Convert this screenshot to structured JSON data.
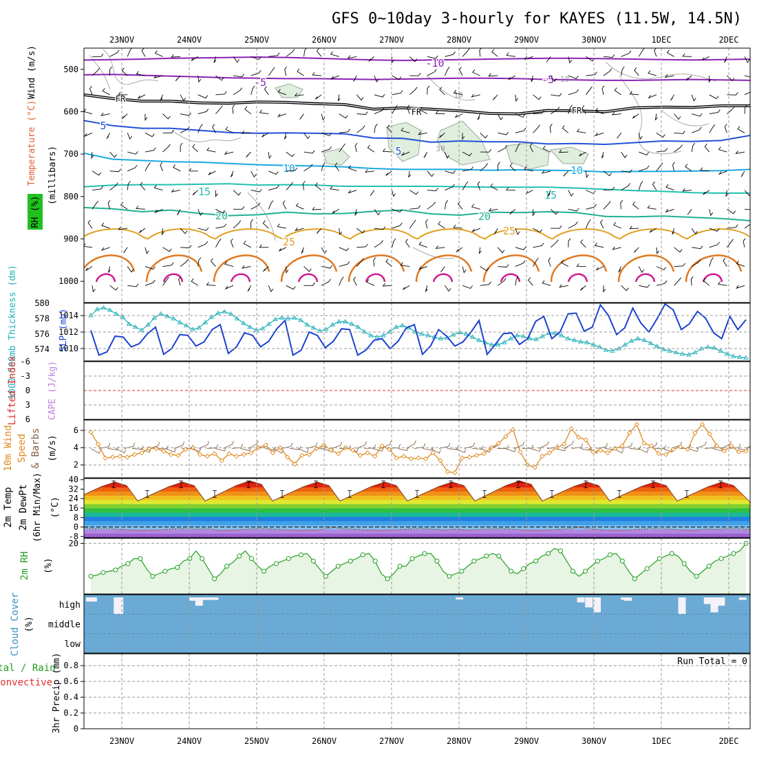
{
  "chart_data": [
    {
      "type": "heatmap",
      "title": "GFS 0~10day 3-hourly for KAYES (11.5W, 14.5N)",
      "x_tick_labels": [
        "23NOV",
        "24NOV",
        "25NOV",
        "26NOV",
        "27NOV",
        "28NOV",
        "29NOV",
        "30NOV",
        "1DEC",
        "2DEC"
      ],
      "panel": "upper-air",
      "ylabel_parts": [
        "Wind (m/s)",
        "Temperature (°C)",
        "RH (%)",
        "(millibars)"
      ],
      "yticks": [
        500,
        600,
        700,
        800,
        900,
        1000
      ],
      "ylim": [
        1050,
        450
      ],
      "temperature_contours": [
        {
          "label": "-10",
          "values": [
            478,
            477,
            476,
            474,
            473,
            472,
            471,
            472,
            474,
            476,
            478,
            479,
            478,
            477,
            476,
            475,
            474,
            474,
            475,
            476,
            477,
            478,
            477,
            476
          ]
        },
        {
          "label": "-5",
          "values": [
            513,
            512,
            514,
            516,
            518,
            520,
            521,
            522,
            522,
            523,
            524,
            523,
            522,
            521,
            521,
            522,
            524,
            525,
            526,
            526,
            525,
            524,
            525,
            526
          ]
        },
        {
          "label": "FR",
          "values": [
            560,
            569,
            575,
            575,
            579,
            580,
            577,
            578,
            581,
            583,
            594,
            591,
            594,
            598,
            604,
            605,
            597,
            598,
            600,
            591,
            589,
            590,
            586,
            586
          ]
        },
        {
          "label": "5",
          "values": [
            621,
            633,
            639,
            639,
            644,
            649,
            651,
            650,
            651,
            652,
            662,
            663,
            672,
            669,
            671,
            671,
            676,
            675,
            677,
            673,
            669,
            670,
            668,
            656
          ]
        },
        {
          "label": "10",
          "values": [
            698,
            712,
            715,
            718,
            719,
            722,
            725,
            727,
            728,
            730,
            734,
            736,
            736,
            736,
            738,
            737,
            738,
            739,
            742,
            741,
            741,
            740,
            739,
            736
          ]
        },
        {
          "label": "15",
          "values": [
            777,
            773,
            772,
            772,
            771,
            770,
            773,
            772,
            773,
            776,
            776,
            776,
            776,
            777,
            778,
            778,
            778,
            780,
            783,
            786,
            788,
            791,
            792,
            792
          ]
        },
        {
          "label": "20",
          "values": [
            826,
            829,
            836,
            832,
            840,
            845,
            843,
            837,
            841,
            840,
            835,
            832,
            841,
            844,
            837,
            838,
            836,
            838,
            847,
            848,
            846,
            849,
            852,
            857
          ]
        },
        {
          "label": "25",
          "values": [
            893,
            873,
            890,
            876,
            893,
            878,
            893,
            876,
            893,
            878,
            893,
            876,
            893,
            878,
            893,
            876,
            893,
            878,
            893,
            876,
            893,
            878,
            893,
            876
          ]
        }
      ],
      "contour_colors": {
        "-10": "#8a20b5",
        "-5": "#8a20b5",
        "FR": "#000000",
        "5": "#2050d8",
        "10": "#18a8e0",
        "15": "#20c0b0",
        "20": "#20b090",
        "25": "#e0a020",
        "30": "#e07820",
        "35": "#d01890"
      },
      "rh_labels": [
        "10",
        "30"
      ]
    },
    {
      "type": "line",
      "panel": "thickness-slp",
      "ylabel_left": "1000-500mb Thickness (dm)",
      "ylabel_right": "SLP (mb)",
      "left_ticks": [
        574,
        576,
        578,
        580
      ],
      "left_ylim": [
        572.5,
        580
      ],
      "right_ticks": [
        1010,
        1012,
        1014
      ],
      "right_ylim": [
        1008.5,
        1015.5
      ],
      "series": [
        {
          "axis": "left",
          "color": "#20b0b8",
          "marker": "triangle",
          "values": [
            578.4,
            579.2,
            579.4,
            579.1,
            578.6,
            578.2,
            577.3,
            576.9,
            576.5,
            577.2,
            578.1,
            578.6,
            578.3,
            578.0,
            577.5,
            577.1,
            576.6,
            576.8,
            577.5,
            578.2,
            578.7,
            578.9,
            578.6,
            578.0,
            577.4,
            576.9,
            576.5,
            576.7,
            577.3,
            577.9,
            578.1,
            578.0,
            578.1,
            577.8,
            577.2,
            576.8,
            576.4,
            576.6,
            577.2,
            577.6,
            577.6,
            577.3,
            576.9,
            576.3,
            575.8,
            575.6,
            575.8,
            576.3,
            576.9,
            577.1,
            576.8,
            576.3,
            576.0,
            575.8,
            575.6,
            575.4,
            575.5,
            575.9,
            576.2,
            576.0,
            575.6,
            575.2,
            574.9,
            574.6,
            574.6,
            574.9,
            575.4,
            575.8,
            575.7,
            575.4,
            575.3,
            575.7,
            576.1,
            576.1,
            575.8,
            575.4,
            575.2,
            575.0,
            574.9,
            574.6,
            574.3,
            573.9,
            573.8,
            574.1,
            574.6,
            575.1,
            575.4,
            575.2,
            574.8,
            574.4,
            574.0,
            573.8,
            573.6,
            573.4,
            573.3,
            573.6,
            574.1,
            574.3,
            574.2,
            573.8,
            573.4,
            573.1,
            573.0,
            572.9
          ]
        },
        {
          "axis": "right",
          "color": "#1a40d0",
          "marker": "none",
          "values": [
            1012.2,
            1009.2,
            1009.6,
            1011.5,
            1011.4,
            1010.2,
            1010.6,
            1011.8,
            1012.6,
            1009.3,
            1010.0,
            1011.7,
            1011.6,
            1010.3,
            1010.8,
            1012.3,
            1012.9,
            1009.4,
            1010.2,
            1011.9,
            1011.6,
            1010.2,
            1010.9,
            1012.4,
            1013.4,
            1009.2,
            1009.8,
            1012.0,
            1011.6,
            1010.1,
            1010.9,
            1012.4,
            1012.3,
            1009.2,
            1009.8,
            1011.0,
            1011.2,
            1010.0,
            1010.9,
            1012.5,
            1012.9,
            1009.3,
            1010.3,
            1012.3,
            1011.5,
            1010.3,
            1010.8,
            1012.0,
            1013.4,
            1009.3,
            1010.5,
            1011.8,
            1011.9,
            1010.5,
            1011.2,
            1013.3,
            1013.9,
            1011.2,
            1012.0,
            1014.2,
            1014.3,
            1012.1,
            1012.6,
            1015.3,
            1014.0,
            1011.7,
            1012.5,
            1014.9,
            1013.1,
            1012.0,
            1013.6,
            1015.4,
            1014.7,
            1012.3,
            1013.0,
            1014.5,
            1013.7,
            1011.9,
            1011.2,
            1013.9,
            1012.3,
            1013.5
          ]
        }
      ]
    },
    {
      "type": "line",
      "panel": "stability",
      "ylabel_left": "Lifted Index",
      "ylabel_right": "CAPE (J/kg)",
      "yticks": [
        "-6",
        "-3",
        "0",
        "3",
        "6"
      ],
      "ylim": [
        6,
        -6
      ],
      "zero_line": 0
    },
    {
      "type": "line",
      "panel": "10m-wind",
      "ylabel": "10m Wind Speed (m/s) & Barbs",
      "yticks": [
        2,
        4,
        6
      ],
      "ylim": [
        0.5,
        7.2
      ],
      "series": [
        {
          "name": "Speed",
          "color": "#e08818",
          "marker": "diamond",
          "values": [
            5.8,
            4.4,
            2.8,
            2.9,
            3.0,
            2.9,
            3.2,
            3.4,
            3.9,
            3.9,
            3.6,
            3.2,
            3.1,
            3.8,
            4.0,
            3.2,
            3.0,
            3.3,
            2.5,
            3.3,
            3.0,
            3.2,
            3.4,
            4.0,
            4.3,
            3.4,
            4.0,
            2.9,
            2.1,
            3.1,
            3.2,
            3.9,
            4.3,
            3.7,
            3.3,
            4.0,
            3.7,
            3.1,
            3.4,
            3.0,
            4.2,
            3.8,
            2.8,
            3.0,
            2.7,
            2.8,
            2.7,
            3.4,
            2.5,
            1.2,
            1.1,
            2.8,
            2.9,
            3.1,
            3.3,
            4.0,
            4.5,
            5.3,
            6.1,
            3.5,
            2.0,
            1.7,
            3.0,
            3.4,
            4.0,
            4.4,
            6.2,
            5.2,
            4.9,
            3.5,
            3.7,
            3.4,
            3.9,
            4.2,
            5.7,
            6.7,
            4.5,
            4.2,
            3.3,
            3.2,
            3.8,
            4.1,
            3.8,
            5.7,
            6.7,
            5.6,
            4.2,
            3.6,
            4.2,
            3.5,
            3.6
          ]
        }
      ]
    },
    {
      "type": "area",
      "panel": "2m-temp",
      "ylabel": "2m Temp 2m DewPt (6hr Min/Max) (°C)",
      "yticks": [
        "-8",
        "0",
        "8",
        "16",
        "24",
        "32",
        "40"
      ],
      "ylim": [
        -9,
        41
      ],
      "color_bands": [
        "#9a60d0",
        "#b088e0",
        "#80c0f0",
        "#40a0e8",
        "#1f80e0",
        "#1ab898",
        "#2ec040",
        "#80d030",
        "#e0e830",
        "#f0c020",
        "#f09018",
        "#f06010",
        "#e02010",
        "#a00808"
      ],
      "series": [
        {
          "name": "2m Temp",
          "color": "#804020",
          "day_max": [
            38,
            38,
            39,
            38,
            38,
            38,
            39,
            38,
            38,
            38
          ],
          "night_min": [
            22,
            22,
            22,
            22,
            22,
            22,
            22,
            22,
            22,
            22
          ]
        },
        {
          "name": "2m DewPt",
          "color": "#a06040",
          "values": [
            -2,
            -3,
            -2,
            -2,
            -3,
            -2,
            -1,
            -2,
            -3,
            -2
          ]
        }
      ]
    },
    {
      "type": "area",
      "panel": "2m-rh",
      "ylabel": "2m RH (%)",
      "yticks": [
        20
      ],
      "ylim": [
        0,
        22
      ],
      "series": [
        {
          "name": "2m RH",
          "color": "#20a020",
          "values": [
            7,
            7.5,
            8.5,
            9,
            9.5,
            11,
            12,
            14,
            14,
            10,
            7,
            8,
            9,
            10,
            10.5,
            13,
            14,
            17,
            14,
            10,
            6,
            8,
            11,
            12.5,
            15,
            17,
            14,
            11,
            9,
            11,
            12,
            13,
            14,
            15,
            15.5,
            16,
            13,
            10,
            7,
            9,
            11,
            12,
            13,
            14,
            15.5,
            16,
            13,
            8,
            6,
            8,
            11,
            11,
            14,
            15,
            16,
            16,
            13,
            9,
            7,
            8,
            9,
            11,
            13,
            14,
            15,
            16,
            15,
            12,
            9,
            8,
            10,
            12,
            13,
            15,
            16,
            18,
            17,
            13,
            9,
            7,
            9,
            11,
            13,
            14,
            15.5,
            16,
            13,
            9,
            6,
            8,
            10,
            12,
            14,
            15,
            16,
            15,
            12,
            9,
            7,
            9,
            11,
            13,
            14,
            15,
            16,
            17,
            20
          ]
        }
      ]
    },
    {
      "type": "bar",
      "panel": "cloud-cover",
      "ylabel": "Cloud Cover (%)",
      "yticks": [
        "high",
        "middle",
        "low"
      ],
      "color": "#6aaad4",
      "high_gaps": [
        {
          "day": 0.02,
          "depth": 0.25
        },
        {
          "day": 0.05,
          "depth": 0.25
        },
        {
          "day": 0.07,
          "depth": 0.25
        },
        {
          "day": 0.43,
          "depth": 1.0
        },
        {
          "day": 0.46,
          "depth": 1.0
        },
        {
          "day": 1.55,
          "depth": 0.2
        },
        {
          "day": 1.64,
          "depth": 0.5
        },
        {
          "day": 1.74,
          "depth": 0.15
        },
        {
          "day": 1.8,
          "depth": 0.15
        },
        {
          "day": 1.87,
          "depth": 0.15
        },
        {
          "day": 5.5,
          "depth": 0.12
        },
        {
          "day": 7.3,
          "depth": 0.3
        },
        {
          "day": 7.42,
          "depth": 0.6
        },
        {
          "day": 7.54,
          "depth": 0.9
        },
        {
          "day": 7.95,
          "depth": 0.15
        },
        {
          "day": 8.0,
          "depth": 0.2
        },
        {
          "day": 8.8,
          "depth": 1.0
        },
        {
          "day": 9.18,
          "depth": 0.4
        },
        {
          "day": 9.28,
          "depth": 0.9
        },
        {
          "day": 9.38,
          "depth": 0.5
        },
        {
          "day": 9.7,
          "depth": 0.15
        },
        {
          "day": 10.0,
          "depth": 0.15
        },
        {
          "day": 10.95,
          "depth": 1.0
        },
        {
          "day": 11.05,
          "depth": 0.6
        }
      ]
    },
    {
      "type": "bar",
      "panel": "precip",
      "ylabel_left": "3hr Precip (mm)",
      "ylabel_extra_green": "Total / Rain",
      "ylabel_extra_red": "Convective",
      "annotation": "Run Total = 0",
      "yticks": [
        "0",
        "0.2",
        "0.4",
        "0.6",
        "0.8"
      ],
      "ylim": [
        0,
        0.95
      ],
      "values": []
    }
  ]
}
